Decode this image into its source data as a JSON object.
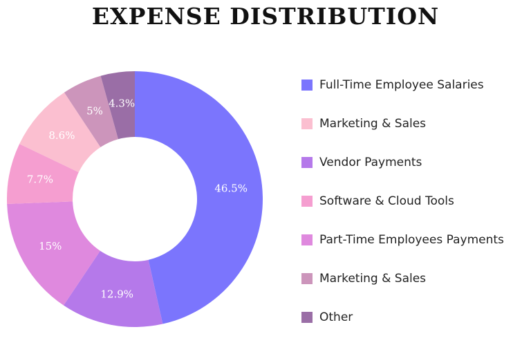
{
  "chart_data": {
    "type": "pie",
    "donut": true,
    "title": "EXPENSE DISTRIBUTION",
    "legend_position": "right",
    "slices": [
      {
        "name": "Full-Time Employee Salaries",
        "value": 46.5,
        "label": "46.5%",
        "color": "#7b75fd"
      },
      {
        "name": "Vendor Payments",
        "value": 12.9,
        "label": "12.9%",
        "color": "#b579ea"
      },
      {
        "name": "Part-Time Employees Payments",
        "value": 15,
        "label": "15%",
        "color": "#df89de"
      },
      {
        "name": "Software & Cloud Tools",
        "value": 7.7,
        "label": "7.7%",
        "color": "#f59ed0"
      },
      {
        "name": "Marketing & Sales",
        "value": 8.6,
        "label": "8.6%",
        "color": "#fbbfd0"
      },
      {
        "name": "Marketing & Sales",
        "value": 5,
        "label": "5%",
        "color": "#cc95bb"
      },
      {
        "name": "Other",
        "value": 4.3,
        "label": "4.3%",
        "color": "#9a6ea6"
      }
    ],
    "legend": [
      {
        "label": "Full-Time Employee Salaries",
        "color": "#7b75fd"
      },
      {
        "label": "Marketing & Sales",
        "color": "#fbbfd0"
      },
      {
        "label": "Vendor Payments",
        "color": "#b579ea"
      },
      {
        "label": "Software & Cloud Tools",
        "color": "#f59ed0"
      },
      {
        "label": "Part-Time Employees Payments",
        "color": "#df89de"
      },
      {
        "label": "Marketing & Sales",
        "color": "#cc95bb"
      },
      {
        "label": "Other",
        "color": "#9a6ea6"
      }
    ]
  }
}
